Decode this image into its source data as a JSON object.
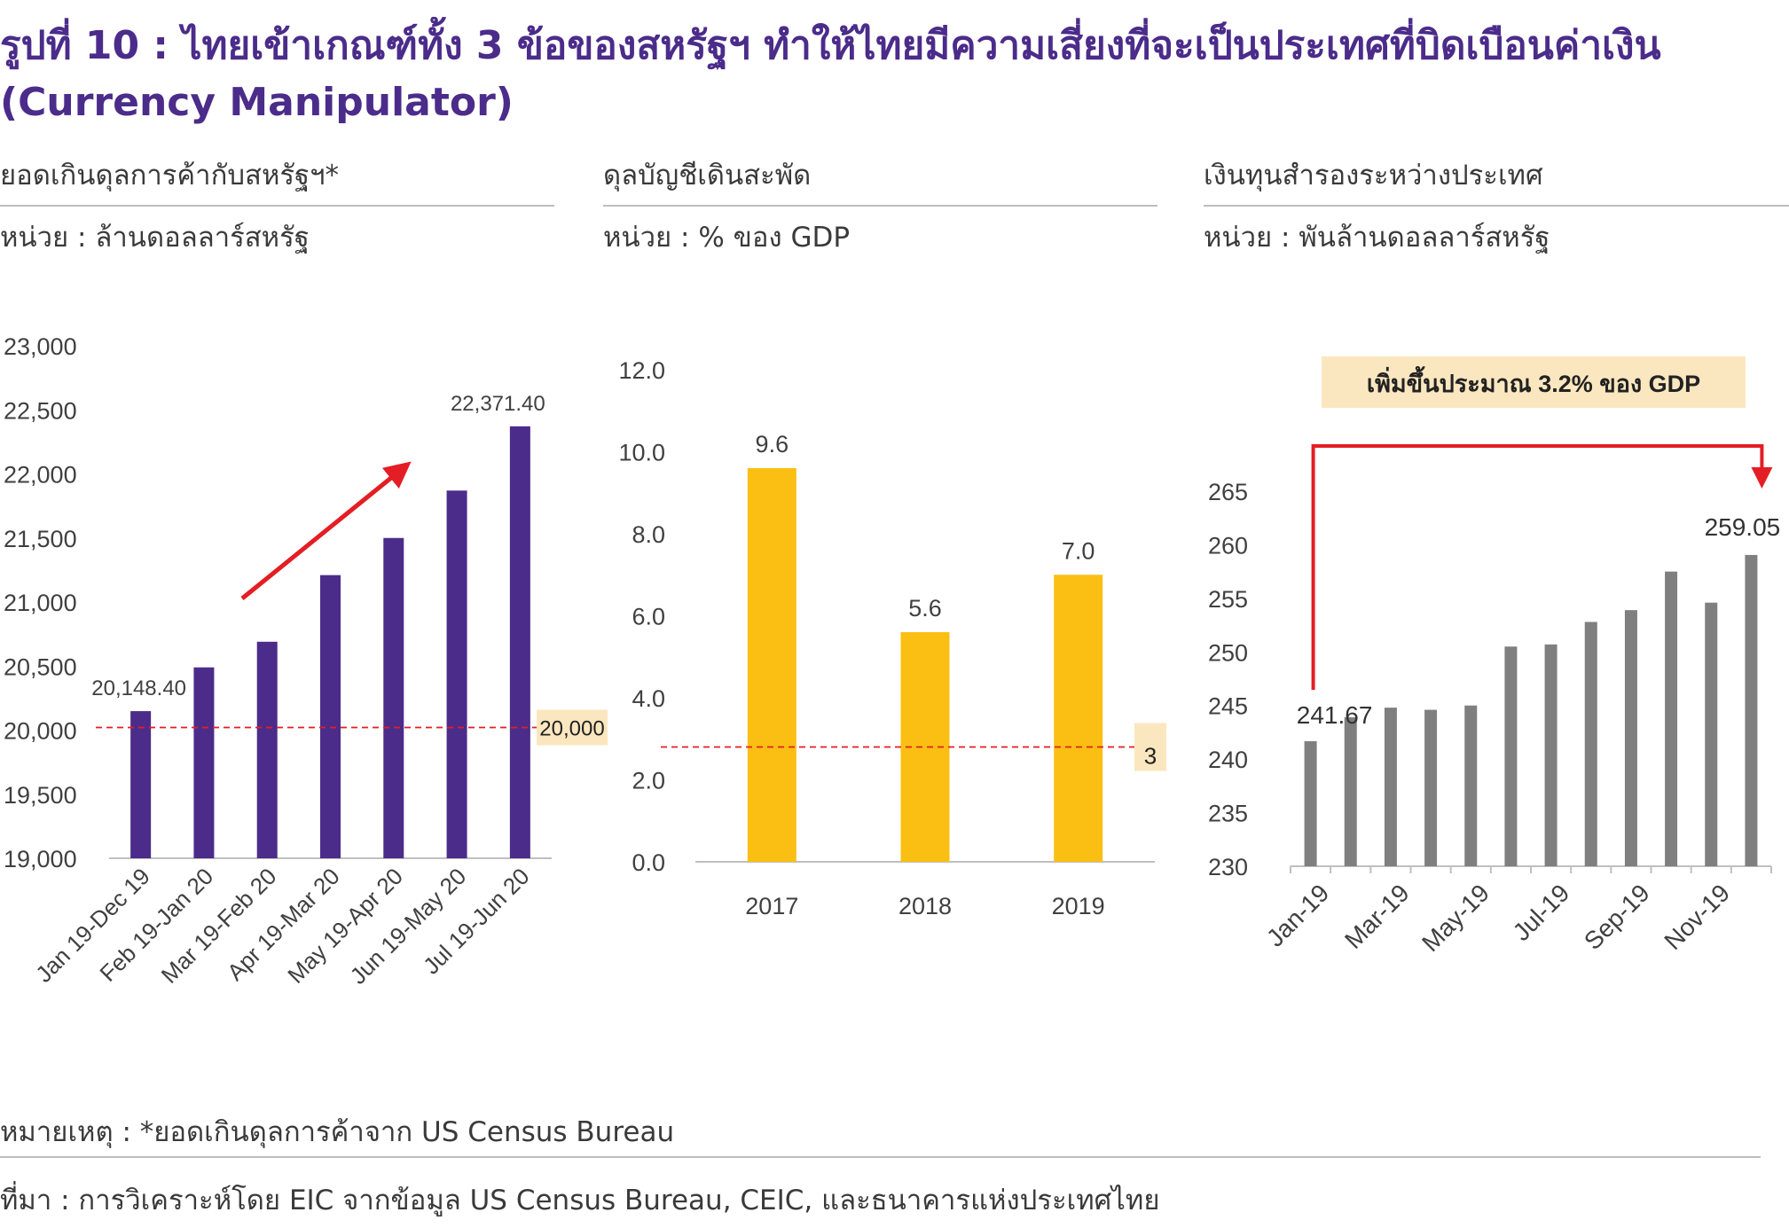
{
  "title": {
    "line1": "รูปที่ 10 : ไทยเข้าเกณฑ์ทั้ง 3 ข้อของสหรัฐฯ ทำให้ไทยมีความเสี่ยงที่จะเป็นประเทศที่บิดเบือนค่าเงิน",
    "line2": "(Currency Manipulator)"
  },
  "colors": {
    "title": "#4b2c8a",
    "purple_bar": "#4b2c8a",
    "yellow_bar": "#fbbf14",
    "gray_bar": "#7f7f7f",
    "threshold": "#e31e24",
    "highlight_box": "#fbe7bf"
  },
  "footnotes": {
    "note": "หมายเหตุ : *ยอดเกินดุลการค้าจาก US Census Bureau",
    "source": "ที่มา : การวิเคราะห์โดย EIC จากข้อมูล US Census Bureau, CEIC, และธนาคารแห่งประเทศไทย"
  },
  "chart_data": [
    {
      "type": "bar",
      "title": "ยอดเกินดุลการค้ากับสหรัฐฯ*",
      "unit": "หน่วย : ล้านดอลลาร์สหรัฐ",
      "categories": [
        "Jan 19-Dec 19",
        "Feb 19-Jan 20",
        "Mar 19-Feb 20",
        "Apr 19-Mar 20",
        "May 19-Apr 20",
        "Jun 19-May 20",
        "Jul 19-Jun 20"
      ],
      "values": [
        20148.4,
        20490,
        20690,
        21210,
        21500,
        21870,
        22371.4
      ],
      "ylim": [
        19000,
        23000
      ],
      "yticks": [
        "19,000",
        "19,500",
        "20,000",
        "20,500",
        "21,000",
        "21,500",
        "22,000",
        "22,500",
        "23,000"
      ],
      "data_labels": {
        "first": "20,148.40",
        "last": "22,371.40"
      },
      "threshold": {
        "value": 20000,
        "label": "20,000"
      },
      "grid": false
    },
    {
      "type": "bar",
      "title": "ดุลบัญชีเดินสะพัด",
      "unit": "หน่วย : % ของ GDP",
      "categories": [
        "2017",
        "2018",
        "2019"
      ],
      "values": [
        9.6,
        5.6,
        7.0
      ],
      "value_labels": [
        "9.6",
        "5.6",
        "7.0"
      ],
      "ylim": [
        0,
        12
      ],
      "yticks": [
        "0.0",
        "2.0",
        "4.0",
        "6.0",
        "8.0",
        "10.0",
        "12.0"
      ],
      "threshold": {
        "value": 2.8,
        "label": "3"
      },
      "grid": false
    },
    {
      "type": "bar",
      "title": "เงินทุนสำรองระหว่างประเทศ",
      "unit": "หน่วย : พันล้านดอลลาร์สหรัฐ",
      "categories": [
        "Jan-19",
        "Feb-19",
        "Mar-19",
        "Apr-19",
        "May-19",
        "Jun-19",
        "Jul-19",
        "Aug-19",
        "Sep-19",
        "Oct-19",
        "Nov-19",
        "Dec-19"
      ],
      "x_tick_labels": [
        "Jan-19",
        "Mar-19",
        "May-19",
        "Jul-19",
        "Sep-19",
        "Nov-19"
      ],
      "values": [
        241.67,
        243.9,
        244.8,
        244.6,
        245.0,
        250.5,
        250.7,
        252.8,
        253.9,
        257.5,
        254.6,
        259.05
      ],
      "ylim": [
        230,
        265
      ],
      "yticks": [
        "230",
        "235",
        "240",
        "245",
        "250",
        "255",
        "260",
        "265"
      ],
      "data_labels": {
        "first": "241.67",
        "last": "259.05"
      },
      "annotation": "เพิ่มขึ้นประมาณ 3.2% ของ GDP",
      "grid": false
    }
  ]
}
